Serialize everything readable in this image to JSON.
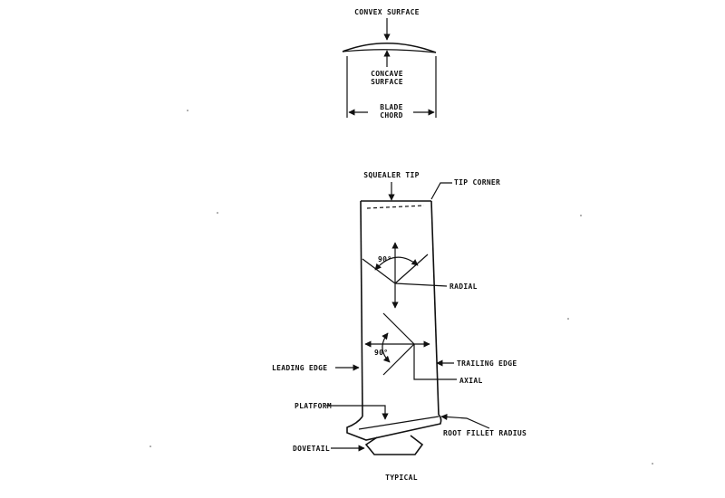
{
  "labels": {
    "convex_surface": "CONVEX SURFACE",
    "concave_line1": "CONCAVE",
    "concave_line2": "SURFACE",
    "blade_line1": "BLADE",
    "blade_line2": "CHORD",
    "squealer_tip": "SQUEALER TIP",
    "tip_corner": "TIP CORNER",
    "angle_upper": "90°",
    "radial": "RADIAL",
    "angle_lower": "90°",
    "leading_edge": "LEADING EDGE",
    "trailing_edge": "TRAILING EDGE",
    "axial": "AXIAL",
    "platform": "PLATFORM",
    "root_fillet_radius": "ROOT FILLET RADIUS",
    "dovetail": "DOVETAIL",
    "typical": "TYPICAL"
  },
  "colors": {
    "ink": "#111111",
    "paper": "#ffffff"
  }
}
